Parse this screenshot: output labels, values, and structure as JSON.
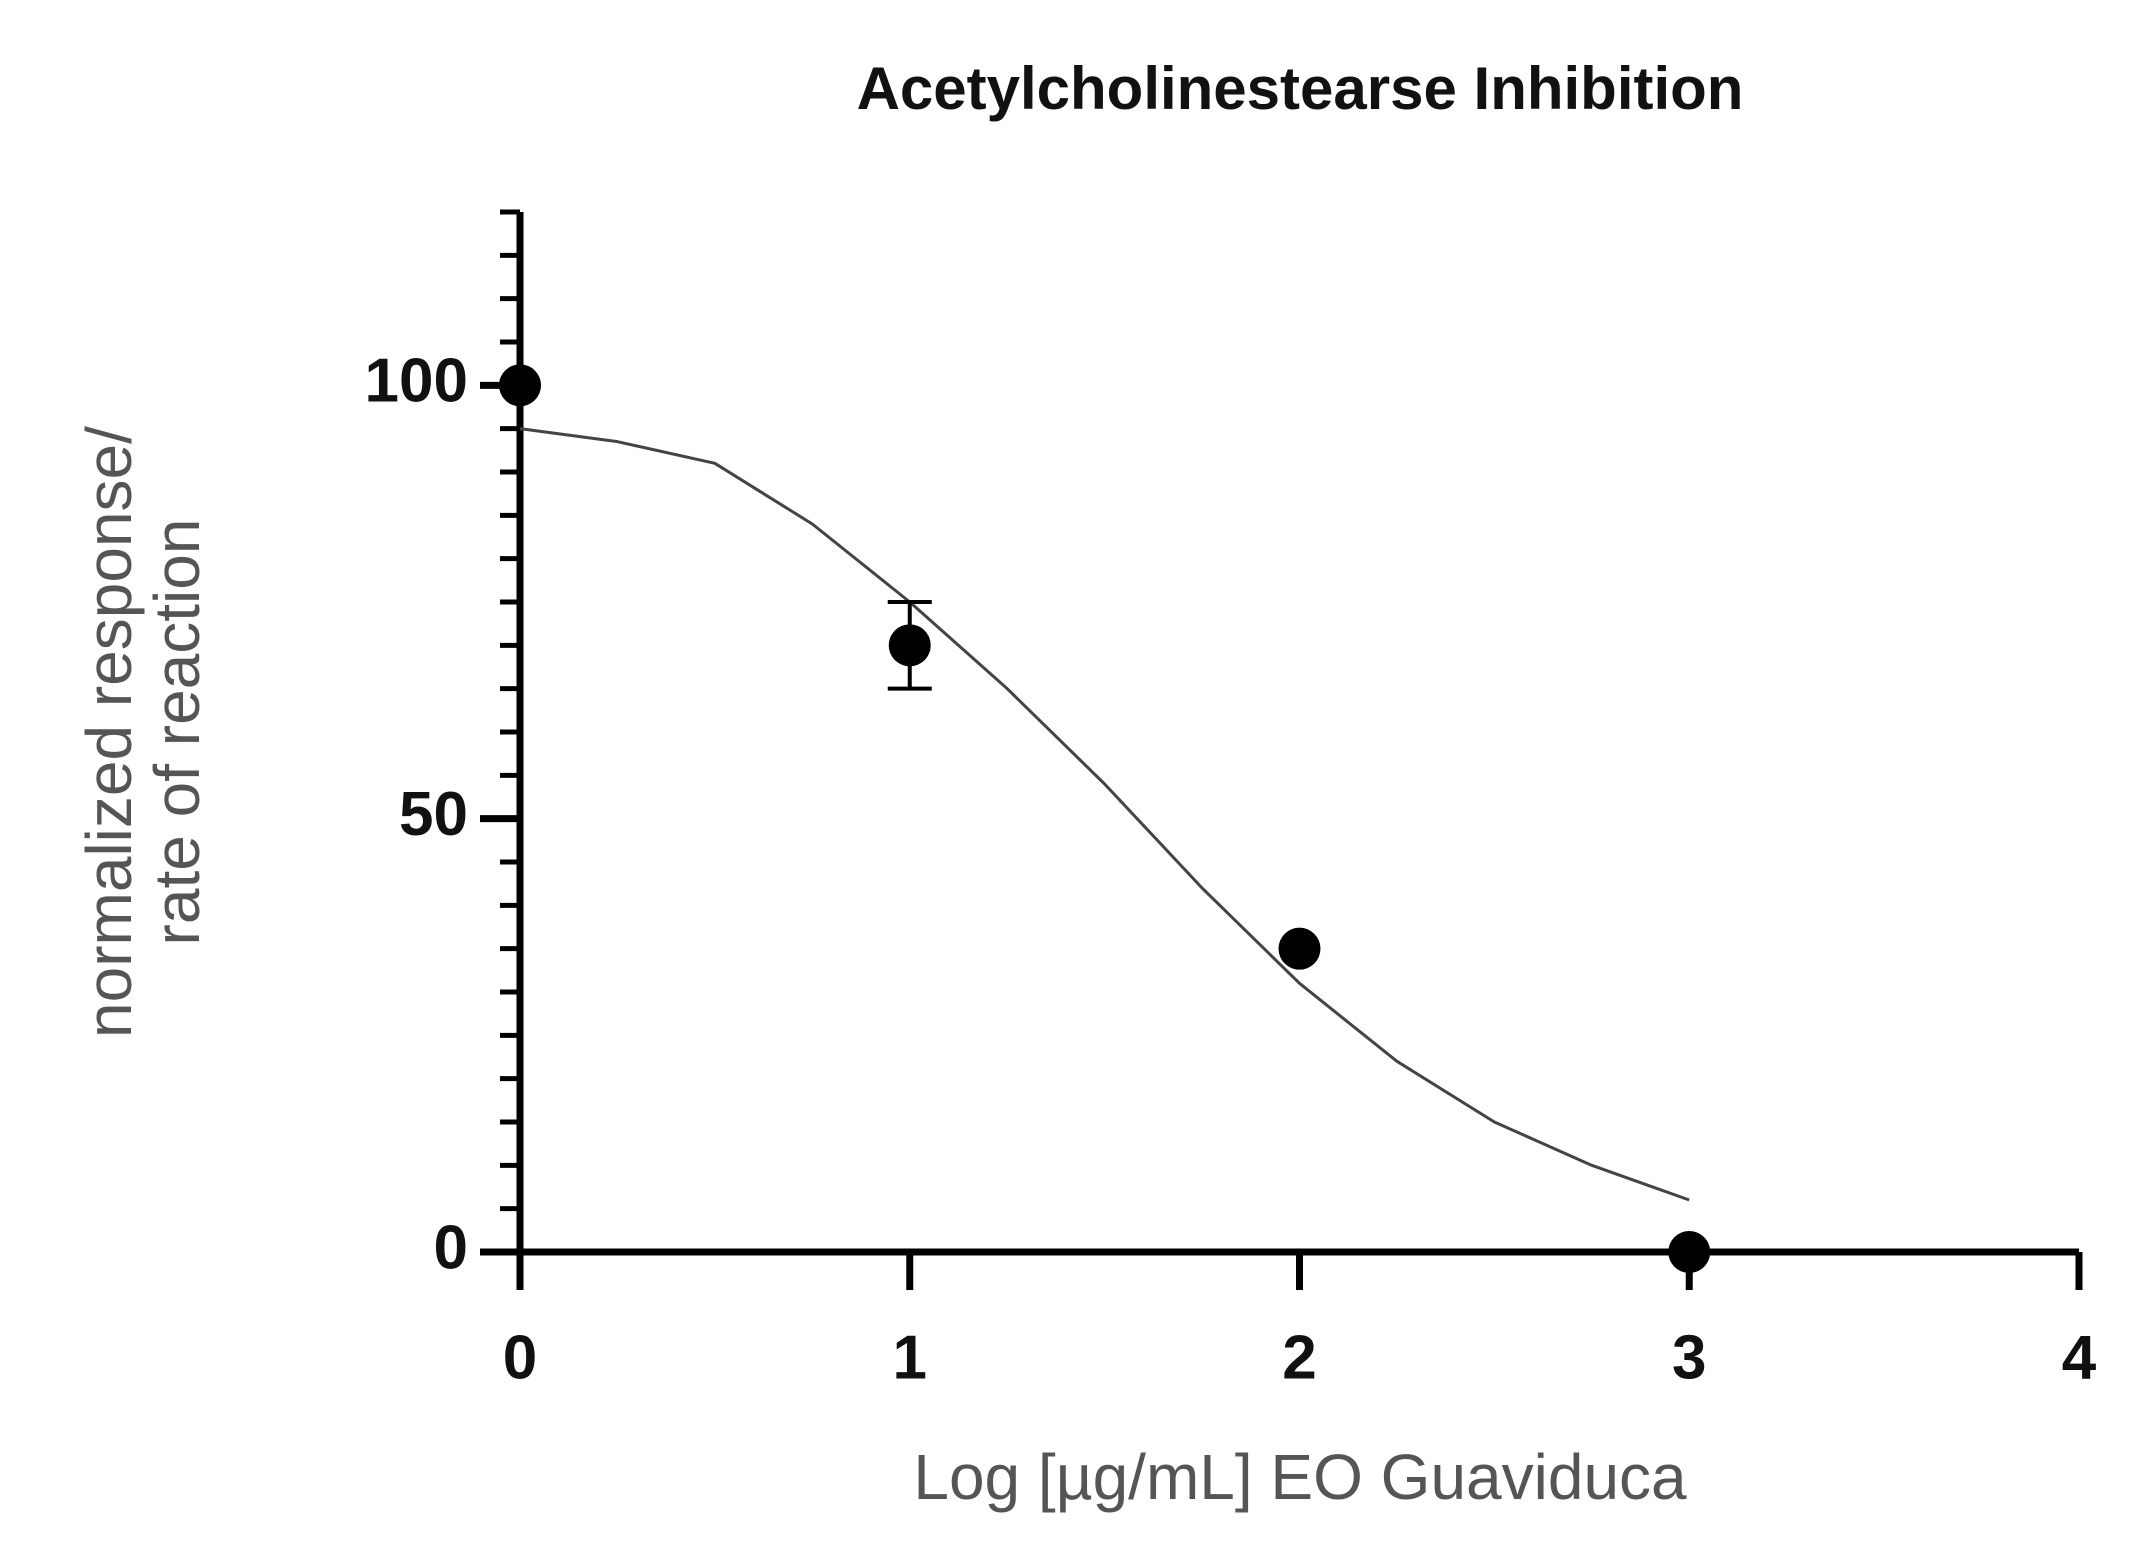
{
  "chart_data": {
    "type": "scatter",
    "title": "Acetylcholinestearse Inhibition",
    "x_label": "Log [µg/mL] EO Guaviduca",
    "y_label": [
      "normalized response/",
      "rate of reaction"
    ],
    "x": [
      0,
      1,
      2,
      3
    ],
    "values": [
      100,
      70,
      35,
      0
    ],
    "errors": [
      null,
      5,
      null,
      null
    ],
    "color": "#000000",
    "fit": {
      "x": [
        0,
        0.25,
        0.5,
        0.75,
        1,
        1.25,
        1.5,
        1.75,
        2,
        2.25,
        2.5,
        2.75,
        3
      ],
      "values": [
        95,
        93.5,
        91,
        84,
        75,
        65,
        54,
        42,
        31,
        22,
        15,
        10,
        6
      ],
      "color": "#444444"
    },
    "xlim": [
      0,
      4
    ],
    "ylim": [
      0,
      120
    ],
    "xticks": [
      0,
      1,
      2,
      3,
      4
    ],
    "yticks": [
      0,
      50,
      100
    ],
    "y_minor_ticks": [
      5,
      10,
      15,
      20,
      25,
      30,
      35,
      40,
      45,
      55,
      60,
      65,
      70,
      75,
      80,
      85,
      90,
      95,
      105,
      110,
      115,
      120
    ]
  }
}
